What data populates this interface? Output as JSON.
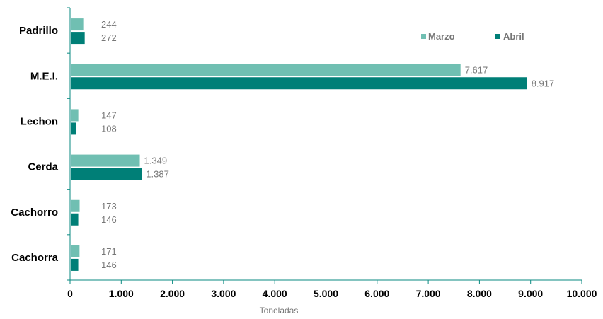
{
  "colors": {
    "marzo": "#70bfb2",
    "abril": "#007f77",
    "axis": "#0a8a82"
  },
  "chart_data": {
    "type": "bar",
    "orientation": "horizontal",
    "categories": [
      "Padrillo",
      "M.E.I.",
      "Lechon",
      "Cerda",
      "Cachorro",
      "Cachorra"
    ],
    "series": [
      {
        "name": "Marzo",
        "values": [
          244,
          7617,
          147,
          1349,
          173,
          171
        ],
        "labels": [
          "244",
          "7.617",
          "147",
          "1.349",
          "173",
          "171"
        ]
      },
      {
        "name": "Abril",
        "values": [
          272,
          8917,
          108,
          1387,
          146,
          146
        ],
        "labels": [
          "272",
          "8.917",
          "108",
          "1.387",
          "146",
          "146"
        ]
      }
    ],
    "xlim": [
      0,
      10000
    ],
    "xticks": [
      0,
      1000,
      2000,
      3000,
      4000,
      5000,
      6000,
      7000,
      8000,
      9000,
      10000
    ],
    "xtick_labels": [
      "0",
      "1.000",
      "2.000",
      "3.000",
      "4.000",
      "5.000",
      "6.000",
      "7.000",
      "8.000",
      "9.000",
      "10.000"
    ],
    "xlabel": "Toneladas",
    "legend_position": "top-right"
  }
}
